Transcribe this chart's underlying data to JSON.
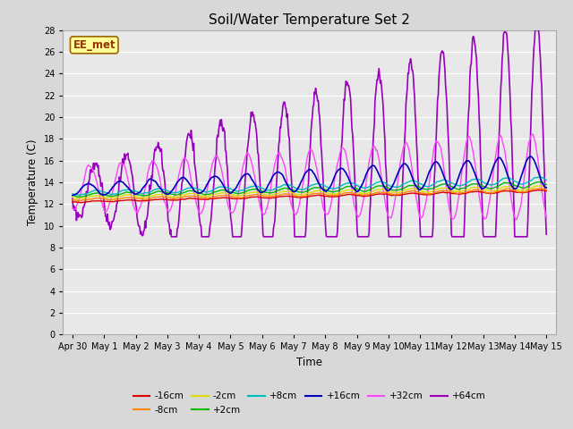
{
  "title": "Soil/Water Temperature Set 2",
  "xlabel": "Time",
  "ylabel": "Temperature (C)",
  "ylim": [
    0,
    28
  ],
  "yticks": [
    0,
    2,
    4,
    6,
    8,
    10,
    12,
    14,
    16,
    18,
    20,
    22,
    24,
    26,
    28
  ],
  "fig_bg_color": "#d8d8d8",
  "plot_bg_color": "#e8e8e8",
  "grid_color": "#ffffff",
  "series_colors": {
    "-16cm": "#dd0000",
    "-8cm": "#ff8800",
    "-2cm": "#dddd00",
    "+2cm": "#00bb00",
    "+8cm": "#00bbbb",
    "+16cm": "#0000bb",
    "+32cm": "#ff44ff",
    "+64cm": "#9900bb"
  },
  "watermark_text": "EE_met",
  "watermark_bg": "#ffff99",
  "watermark_border": "#996600",
  "seed": 42
}
